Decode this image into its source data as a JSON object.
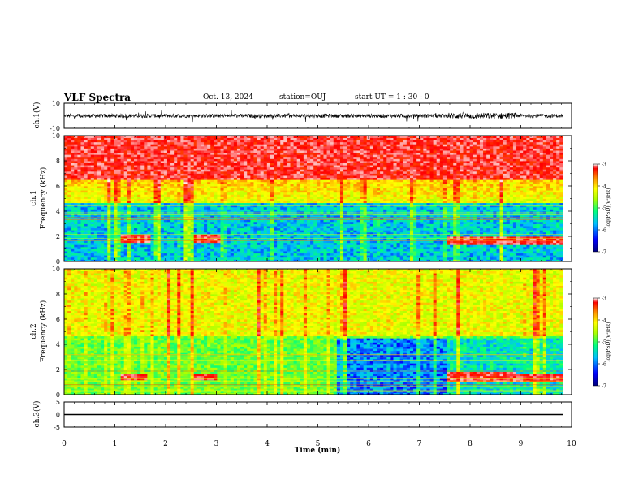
{
  "header": {
    "title": "VLF Spectra",
    "date": "Oct. 13, 2024",
    "station": "station=OUJ",
    "start_time": "start UT =  1 : 30 : 0"
  },
  "chart_data": [
    {
      "type": "line",
      "panel": "ch1-waveform",
      "ylabel": "ch.1(V)",
      "ylim": [
        -10,
        10
      ],
      "yticks": [
        "10",
        "-10"
      ],
      "xlim": [
        0,
        10
      ],
      "data_extent_min": 9.83,
      "description_values": {
        "baseline": 0,
        "typical_amplitude": 1.5,
        "burst_amplitude": 5
      }
    },
    {
      "type": "heatmap",
      "panel": "ch1-spectrogram",
      "ylabel": "ch.1\nFrequency (kHz)",
      "ylim": [
        0,
        10
      ],
      "yticks": [
        "0",
        "2",
        "4",
        "6",
        "8",
        "10"
      ],
      "xlim": [
        0,
        10
      ],
      "data_extent_min": 9.83,
      "colorbar": {
        "label": "log(PSD)(V²/Hz)",
        "range": [
          -7,
          -3
        ],
        "ticks": [
          "-3",
          "-4",
          "-5",
          "-6",
          "-7"
        ]
      },
      "features": [
        {
          "t_start": 1.05,
          "t_end": 1.65,
          "f_low": 1.5,
          "f_high": 2.1,
          "level": "high"
        },
        {
          "t_start": 2.55,
          "t_end": 3.05,
          "f_low": 1.4,
          "f_high": 2.1,
          "level": "high"
        },
        {
          "t_start": 7.5,
          "t_end": 9.83,
          "f_low": 1.2,
          "f_high": 2.0,
          "level": "high"
        },
        {
          "t_start": 0,
          "t_end": 9.83,
          "f_low": 0,
          "f_high": 4.3,
          "level": "low"
        },
        {
          "t_start": 0,
          "t_end": 9.83,
          "f_low": 6.5,
          "f_high": 10,
          "level": "high"
        }
      ]
    },
    {
      "type": "heatmap",
      "panel": "ch2-spectrogram",
      "ylabel": "ch.2\nFrequency (kHz)",
      "ylim": [
        0,
        10
      ],
      "yticks": [
        "0",
        "2",
        "4",
        "6",
        "8",
        "10"
      ],
      "xlim": [
        0,
        10
      ],
      "data_extent_min": 9.83,
      "colorbar": {
        "label": "log(PSD)(V²/Hz)",
        "range": [
          -7,
          -3
        ],
        "ticks": [
          "-3",
          "-4",
          "-5",
          "-6",
          "-7"
        ]
      },
      "features": [
        {
          "t_start": 1.05,
          "t_end": 1.6,
          "f_low": 1.1,
          "f_high": 1.6,
          "level": "high"
        },
        {
          "t_start": 2.55,
          "t_end": 3.0,
          "f_low": 1.1,
          "f_high": 1.6,
          "level": "high"
        },
        {
          "t_start": 5.35,
          "t_end": 7.5,
          "f_low": 0,
          "f_high": 4.5,
          "level": "low"
        },
        {
          "t_start": 7.5,
          "t_end": 8.9,
          "f_low": 1.0,
          "f_high": 1.8,
          "level": "high"
        },
        {
          "t_start": 8.9,
          "t_end": 9.83,
          "f_low": 1.0,
          "f_high": 1.6,
          "level": "high"
        }
      ]
    },
    {
      "type": "line",
      "panel": "ch3-waveform",
      "ylabel": "ch.3(V)",
      "ylim": [
        -5,
        5
      ],
      "yticks": [
        "5",
        "0",
        "-5"
      ],
      "xlim": [
        0,
        10
      ],
      "x": [
        0,
        9.83
      ],
      "y": [
        0,
        0
      ]
    }
  ],
  "x_axis": {
    "label": "Time (min)",
    "ticks": [
      "0",
      "1",
      "2",
      "3",
      "4",
      "5",
      "6",
      "7",
      "8",
      "9",
      "10"
    ]
  },
  "colors": {
    "colormap": [
      "#00007f",
      "#0000ff",
      "#00bfff",
      "#00ff7f",
      "#aaff00",
      "#ffff00",
      "#ff8c00",
      "#ff0000",
      "#ffffff"
    ]
  }
}
